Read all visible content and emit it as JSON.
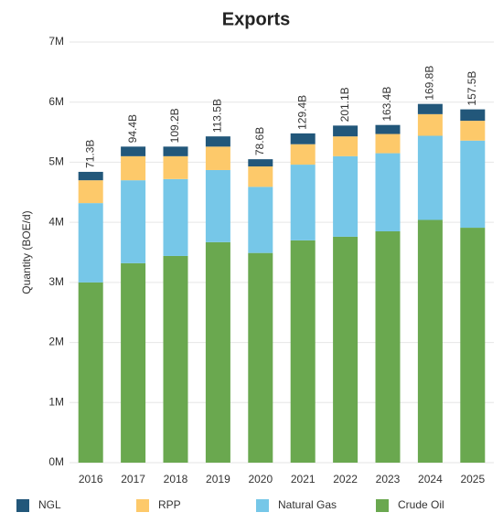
{
  "chart_data": {
    "type": "stacked-bar",
    "title": "Exports",
    "y_label": "Quantity (BOE/d)",
    "categories": [
      "2016",
      "2017",
      "2018",
      "2019",
      "2020",
      "2021",
      "2022",
      "2023",
      "2024",
      "2025"
    ],
    "series": [
      {
        "name": "NGL",
        "color": "#22577a",
        "values": [
          140000,
          160000,
          160000,
          170000,
          120000,
          180000,
          180000,
          150000,
          170000,
          190000
        ]
      },
      {
        "name": "RPP",
        "color": "#fdc96a",
        "values": [
          380000,
          400000,
          380000,
          390000,
          340000,
          340000,
          330000,
          320000,
          360000,
          330000
        ]
      },
      {
        "name": "Natural Gas",
        "color": "#76c7e8",
        "values": [
          1320000,
          1380000,
          1280000,
          1200000,
          1100000,
          1260000,
          1340000,
          1300000,
          1400000,
          1450000
        ]
      },
      {
        "name": "Crude Oil",
        "color": "#6aa84f",
        "values": [
          3000000,
          3320000,
          3440000,
          3670000,
          3490000,
          3700000,
          3760000,
          3850000,
          4040000,
          3910000
        ]
      }
    ],
    "top_labels": [
      "71.3B",
      "94.4B",
      "109.2B",
      "113.5B",
      "78.6B",
      "129.4B",
      "201.1B",
      "163.4B",
      "169.8B",
      "157.5B"
    ],
    "ylim": [
      0,
      7000000
    ],
    "yticks": [
      {
        "value": 0,
        "label": "0M"
      },
      {
        "value": 1000000,
        "label": "1M"
      },
      {
        "value": 2000000,
        "label": "2M"
      },
      {
        "value": 3000000,
        "label": "3M"
      },
      {
        "value": 4000000,
        "label": "4M"
      },
      {
        "value": 5000000,
        "label": "5M"
      },
      {
        "value": 6000000,
        "label": "6M"
      },
      {
        "value": 7000000,
        "label": "7M"
      }
    ],
    "grid": true,
    "legend": "bottom"
  }
}
